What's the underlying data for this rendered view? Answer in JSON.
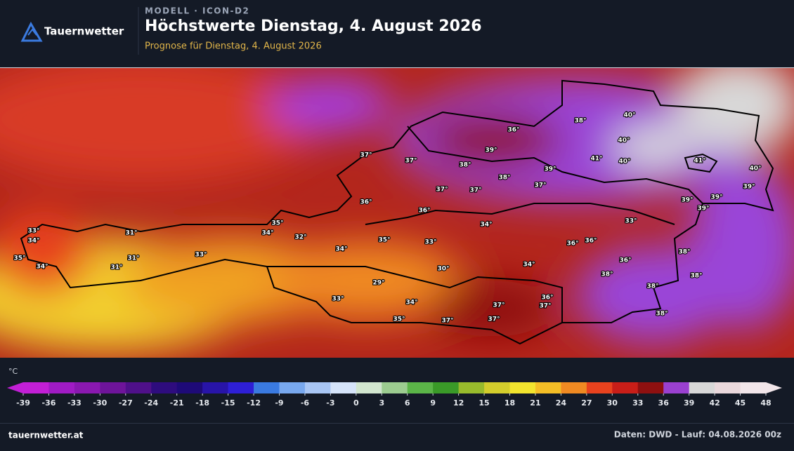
{
  "header": {
    "brand": "Tauernwetter",
    "model": "MODELL · ICON-D2",
    "title": "Höchstwerte Dienstag, 4. August 2026",
    "subtitle": "Prognose für Dienstag, 4. August 2026"
  },
  "map": {
    "labels": [
      "40°",
      "38°",
      "36°",
      "40°",
      "39°",
      "37°",
      "37°",
      "38°",
      "41°",
      "40°",
      "41°",
      "40°",
      "39°",
      "38°",
      "37°",
      "37°",
      "37°",
      "39°",
      "39°",
      "39°",
      "39°",
      "36°",
      "36°",
      "35°",
      "34°",
      "33°",
      "33°",
      "31°",
      "34°",
      "32°",
      "34°",
      "35°",
      "33°",
      "36°",
      "36°",
      "34°",
      "33°",
      "38°",
      "35°",
      "31°",
      "36°",
      "34°",
      "31°",
      "34°",
      "30°",
      "38°",
      "38°",
      "29°",
      "38°",
      "33°",
      "36°",
      "34°",
      "37°",
      "37°",
      "38°",
      "35°",
      "37°",
      "37°"
    ]
  },
  "legend": {
    "unit": "°C",
    "ticks": [
      -39,
      -36,
      -33,
      -30,
      -27,
      -24,
      -21,
      -18,
      -15,
      -12,
      -9,
      -6,
      -3,
      0,
      3,
      6,
      9,
      12,
      15,
      18,
      21,
      24,
      27,
      30,
      33,
      36,
      39,
      42,
      45,
      48
    ],
    "colors": [
      "#c21fd6",
      "#a01bc4",
      "#8a18b0",
      "#6e149a",
      "#4f108a",
      "#2e0c7e",
      "#1e0a78",
      "#2814a8",
      "#2e1fd6",
      "#3a7ae0",
      "#78a8ee",
      "#a9c6f4",
      "#d6e4fa",
      "#d2e6cf",
      "#9ccc90",
      "#5bb548",
      "#3a9a28",
      "#98bb2c",
      "#d3cd2c",
      "#f2e42e",
      "#f4be26",
      "#f08a22",
      "#e8421e",
      "#c81e18",
      "#8e1010",
      "#9a40d0",
      "#d8d8d8",
      "#ead8dc",
      "#f2e6ea"
    ]
  },
  "footer": {
    "site": "tauernwetter.at",
    "source": "Daten: DWD - Lauf: 04.08.2026 00z"
  }
}
